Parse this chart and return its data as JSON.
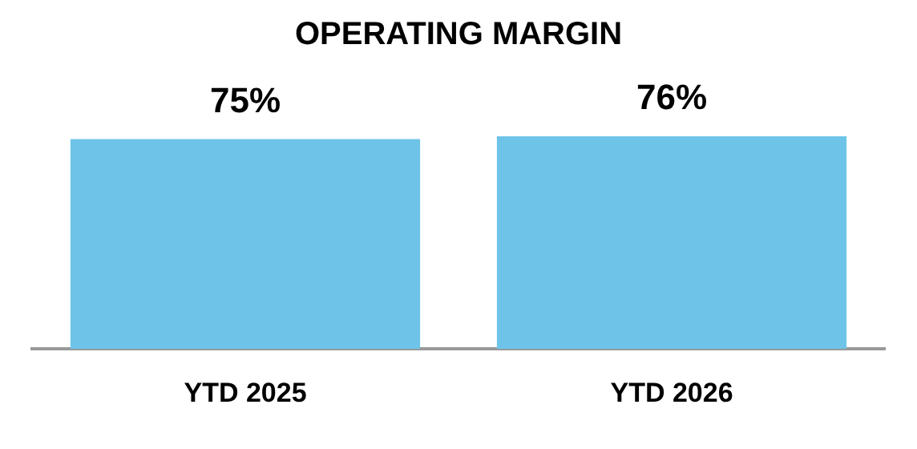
{
  "chart_data": {
    "type": "bar",
    "title": "OPERATING MARGIN",
    "categories": [
      "YTD 2025",
      "YTD 2026"
    ],
    "values": [
      75,
      76
    ],
    "value_labels": [
      "75%",
      "76%"
    ],
    "color": "#6ec4e8",
    "grid": false,
    "legend": false
  }
}
